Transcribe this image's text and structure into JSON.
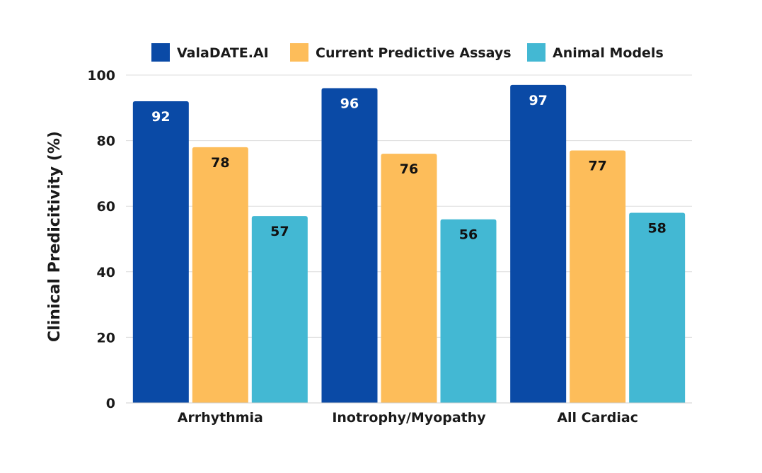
{
  "chart_data": {
    "type": "bar",
    "title": "",
    "xlabel": "",
    "ylabel": "Clinical Predicitivity (%)",
    "ylim": [
      0,
      100
    ],
    "yticks": [
      0,
      20,
      40,
      60,
      80,
      100
    ],
    "grid": true,
    "legend_position": "top",
    "categories": [
      "Arrhythmia",
      "Inotrophy/Myopathy",
      "All Cardiac"
    ],
    "series": [
      {
        "name": "ValaDATE.AI",
        "color": "#0a4aa6",
        "label_color": "#ffffff",
        "values": [
          92,
          96,
          97
        ]
      },
      {
        "name": "Current Predictive Assays",
        "color": "#fdbd5a",
        "label_color": "#111111",
        "values": [
          78,
          76,
          77
        ]
      },
      {
        "name": "Animal Models",
        "color": "#43b8d3",
        "label_color": "#111111",
        "values": [
          57,
          56,
          58
        ]
      }
    ]
  }
}
